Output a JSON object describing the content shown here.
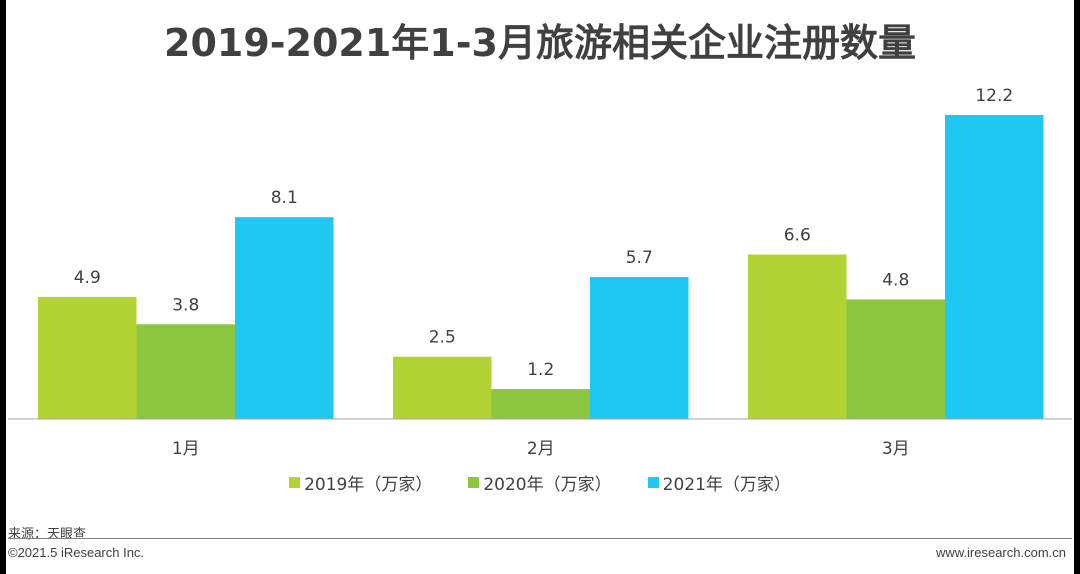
{
  "chart_data": {
    "type": "bar",
    "title": "2019-2021年1-3月旅游相关企业注册数量",
    "categories": [
      "1月",
      "2月",
      "3月"
    ],
    "series": [
      {
        "name": "2019年（万家）",
        "values": [
          4.9,
          2.5,
          6.6
        ],
        "color": "#b3d334"
      },
      {
        "name": "2020年（万家）",
        "values": [
          3.8,
          1.2,
          4.8
        ],
        "color": "#8cc63f"
      },
      {
        "name": "2021年（万家）",
        "values": [
          8.1,
          5.7,
          12.2
        ],
        "color": "#1ec8f2"
      }
    ],
    "ylim": [
      0,
      12.2
    ],
    "grid": false,
    "legend_position": "bottom",
    "xlabel": "",
    "ylabel": ""
  },
  "footer": {
    "source": "来源：天眼查",
    "copyright": "©2021.5 iResearch Inc.",
    "website": "www.iresearch.com.cn"
  }
}
